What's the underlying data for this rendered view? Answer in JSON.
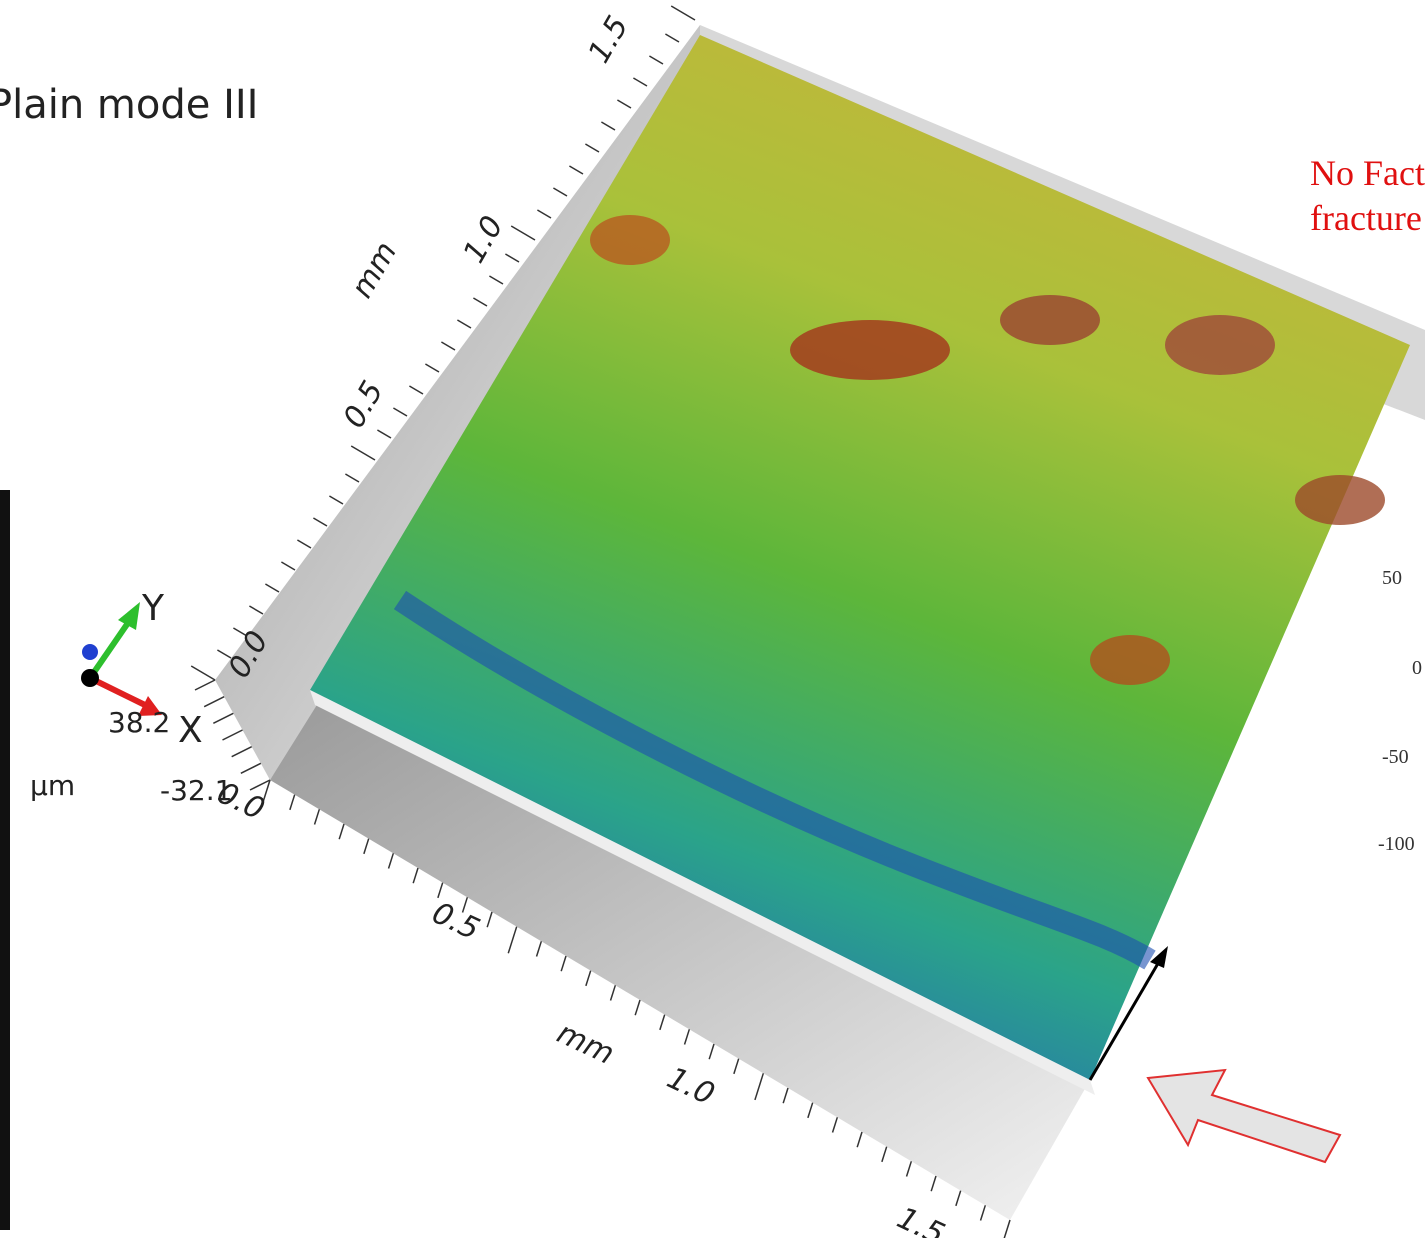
{
  "title": "Plain mode III",
  "note": [
    "No Fact",
    "fracture"
  ],
  "y_axis": {
    "label": "mm",
    "ticks": [
      "0.0",
      "0.5",
      "1.0",
      "1.5"
    ]
  },
  "x_axis": {
    "label": "mm",
    "ticks": [
      "0.0",
      "0.5",
      "1.0",
      "1.5"
    ]
  },
  "z_axis": {
    "unit": "µm",
    "max": "38.2",
    "min": "-32.1"
  },
  "side_scale": [
    "50",
    "0",
    "-50",
    "-100"
  ],
  "triad": {
    "x": "X",
    "y": "Y"
  }
}
